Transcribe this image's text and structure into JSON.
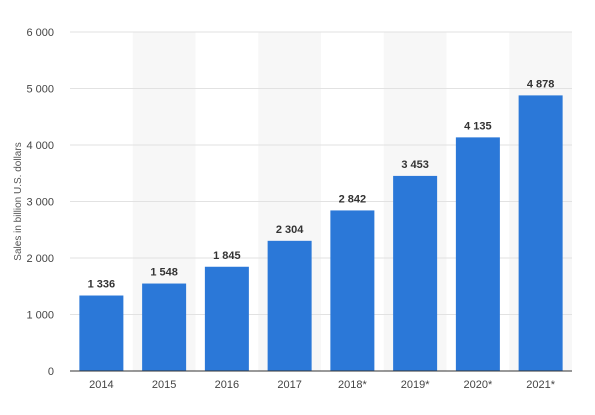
{
  "chart_data": {
    "type": "bar",
    "categories": [
      "2014",
      "2015",
      "2016",
      "2017",
      "2018*",
      "2019*",
      "2020*",
      "2021*"
    ],
    "values": [
      1336,
      1548,
      1845,
      2304,
      2842,
      3453,
      4135,
      4878
    ],
    "value_labels": [
      "1 336",
      "1 548",
      "1 845",
      "2 304",
      "2 842",
      "3 453",
      "4 135",
      "4 878"
    ],
    "title": "",
    "xlabel": "",
    "ylabel": "Sales in billion U.S. dollars",
    "ylim": [
      0,
      6000
    ],
    "yticks": [
      0,
      1000,
      2000,
      3000,
      4000,
      5000,
      6000
    ],
    "ytick_labels": [
      "0",
      "1 000",
      "2 000",
      "3 000",
      "4 000",
      "5 000",
      "6 000"
    ],
    "grid": true,
    "colors": {
      "bar": "#2b78d8",
      "band": "#f7f7f7",
      "grid": "#e2e2e2",
      "axis": "#333333"
    }
  }
}
